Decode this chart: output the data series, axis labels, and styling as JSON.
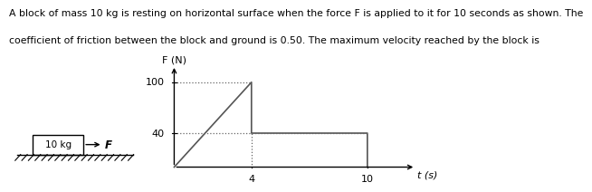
{
  "ylabel": "F (N)",
  "xlabel": "t (s)",
  "graph_x": [
    0,
    4,
    4,
    10,
    10
  ],
  "graph_y": [
    0,
    100,
    40,
    40,
    0
  ],
  "peak_x": 4,
  "peak_y": 100,
  "step_y": 40,
  "end_x": 10,
  "yticks": [
    40,
    100
  ],
  "xticks": [
    4,
    10
  ],
  "xlim": [
    -0.3,
    12.5
  ],
  "ylim": [
    -5,
    120
  ],
  "line_color": "#555555",
  "dot_color": "#666666",
  "block_label": "10 kg",
  "arrow_label": "F",
  "bg_color": "#ffffff",
  "fig_bg": "#ffffff",
  "text_line1": "A block of mass 10 kg is resting on horizontal surface when the force F is applied to it for 10 seconds as shown. The",
  "text_line2": "coefficient of friction between the block and ground is 0.50. The maximum velocity reached by the block is"
}
